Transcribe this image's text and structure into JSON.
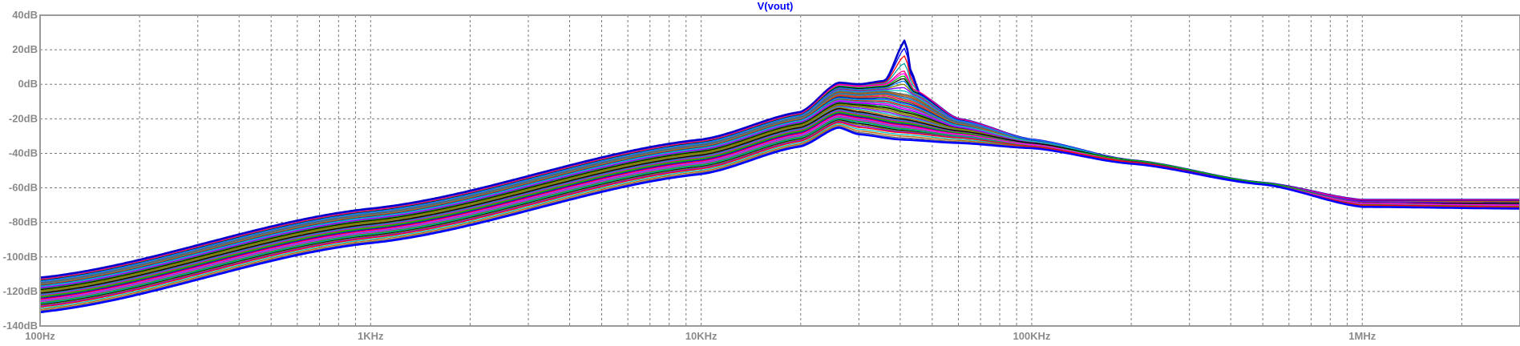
{
  "chart_data": {
    "type": "line",
    "title": "V(vout)",
    "title_color": "#0000ff",
    "x_scale": "log",
    "xlim_hz": [
      100,
      3000000
    ],
    "ylim_db": [
      -140,
      40
    ],
    "x_ticks": [
      {
        "value": 100,
        "label": "100Hz"
      },
      {
        "value": 1000,
        "label": "1KHz"
      },
      {
        "value": 10000,
        "label": "10KHz"
      },
      {
        "value": 100000,
        "label": "100KHz"
      },
      {
        "value": 1000000,
        "label": "1MHz"
      }
    ],
    "y_ticks": [
      {
        "value": 40,
        "label": "40dB"
      },
      {
        "value": 20,
        "label": "20dB"
      },
      {
        "value": 0,
        "label": "0dB"
      },
      {
        "value": -20,
        "label": "-20dB"
      },
      {
        "value": -40,
        "label": "-40dB"
      },
      {
        "value": -60,
        "label": "-60dB"
      },
      {
        "value": -80,
        "label": "-80dB"
      },
      {
        "value": -100,
        "label": "-100dB"
      },
      {
        "value": -120,
        "label": "-120dB"
      },
      {
        "value": -140,
        "label": "-140dB"
      }
    ],
    "grid": true,
    "series_colors": [
      "#0000ff",
      "#ff0000",
      "#00a0a0",
      "#ff00ff",
      "#00c000",
      "#000000",
      "#808000",
      "#8000ff",
      "#00c0c0",
      "#c06000",
      "#606060",
      "#0080ff",
      "#ff0080",
      "#408000"
    ],
    "series": [
      {
        "x": [
          100,
          1000,
          10000,
          20000,
          26000,
          30000,
          40000,
          60000,
          100000,
          200000,
          500000,
          1000000,
          3000000
        ],
        "y": [
          -132,
          -92,
          -52,
          -36,
          -25,
          -29,
          -32,
          -34,
          -37,
          -46,
          -58,
          -71,
          -72
        ]
      },
      {
        "x": [
          100,
          1000,
          10000,
          20000,
          26000,
          30000,
          40000,
          60000,
          100000,
          200000,
          500000,
          1000000,
          3000000
        ],
        "y": [
          -129,
          -89,
          -49,
          -33,
          -22,
          -25,
          -28,
          -31,
          -36,
          -45,
          -58,
          -70,
          -71
        ]
      },
      {
        "x": [
          100,
          1000,
          10000,
          20000,
          26000,
          30000,
          40000,
          60000,
          100000,
          200000,
          500000,
          1000000,
          3000000
        ],
        "y": [
          -127,
          -87,
          -47,
          -31,
          -20,
          -22,
          -26,
          -30,
          -36,
          -45,
          -58,
          -70,
          -71
        ]
      },
      {
        "x": [
          100,
          1000,
          10000,
          20000,
          26000,
          30000,
          40000,
          60000,
          100000,
          200000,
          500000,
          1000000,
          3000000
        ],
        "y": [
          -125,
          -85,
          -45,
          -29,
          -18,
          -20,
          -24,
          -29,
          -35,
          -45,
          -58,
          -69,
          -70
        ]
      },
      {
        "x": [
          100,
          1000,
          10000,
          20000,
          26000,
          30000,
          40000,
          60000,
          100000,
          200000,
          500000,
          1000000,
          3000000
        ],
        "y": [
          -123,
          -83,
          -43,
          -27,
          -16,
          -18,
          -22,
          -28,
          -35,
          -44,
          -57,
          -69,
          -70
        ]
      },
      {
        "x": [
          100,
          1000,
          10000,
          20000,
          26000,
          30000,
          40000,
          60000,
          100000,
          200000,
          500000,
          1000000,
          3000000
        ],
        "y": [
          -121,
          -81,
          -41,
          -25,
          -14,
          -16,
          -20,
          -27,
          -34,
          -44,
          -57,
          -69,
          -69
        ]
      },
      {
        "x": [
          100,
          1000,
          10000,
          20000,
          26000,
          30000,
          36000,
          42000,
          60000,
          100000,
          200000,
          500000,
          1000000,
          3000000
        ],
        "y": [
          -120,
          -80,
          -40,
          -24,
          -12,
          -13,
          -15,
          -18,
          -26,
          -34,
          -44,
          -57,
          -69,
          -69
        ]
      },
      {
        "x": [
          100,
          1000,
          10000,
          20000,
          26000,
          30000,
          36000,
          42000,
          60000,
          100000,
          200000,
          500000,
          1000000,
          3000000
        ],
        "y": [
          -118,
          -78,
          -38,
          -22,
          -10,
          -11,
          -12,
          -15,
          -25,
          -34,
          -44,
          -57,
          -68,
          -69
        ]
      },
      {
        "x": [
          100,
          1000,
          10000,
          20000,
          26000,
          30000,
          36000,
          42000,
          60000,
          100000,
          200000,
          500000,
          1000000,
          3000000
        ],
        "y": [
          -117,
          -77,
          -37,
          -21,
          -8,
          -9,
          -9,
          -12,
          -24,
          -33,
          -44,
          -57,
          -68,
          -69
        ]
      },
      {
        "x": [
          100,
          1000,
          10000,
          20000,
          26000,
          30000,
          36000,
          42000,
          60000,
          100000,
          200000,
          500000,
          1000000,
          3000000
        ],
        "y": [
          -116,
          -76,
          -36,
          -20,
          -6,
          -7,
          -6,
          -9,
          -23,
          -33,
          -44,
          -57,
          -68,
          -68
        ]
      },
      {
        "x": [
          100,
          1000,
          10000,
          20000,
          26000,
          30000,
          36000,
          42000,
          60000,
          100000,
          200000,
          500000,
          1000000,
          3000000
        ],
        "y": [
          -115,
          -75,
          -35,
          -19,
          -4,
          -5,
          -4,
          -6,
          -22,
          -33,
          -44,
          -57,
          -68,
          -68
        ]
      },
      {
        "x": [
          100,
          1000,
          10000,
          20000,
          26000,
          30000,
          36000,
          41000,
          44000,
          60000,
          100000,
          200000,
          500000,
          1000000,
          3000000
        ],
        "y": [
          -114,
          -74,
          -34,
          -18,
          -2,
          -3,
          -2,
          2,
          -5,
          -21,
          -32,
          -44,
          -57,
          -68,
          -68
        ]
      },
      {
        "x": [
          100,
          1000,
          10000,
          20000,
          26000,
          30000,
          36000,
          41000,
          44000,
          60000,
          100000,
          200000,
          500000,
          1000000,
          3000000
        ],
        "y": [
          -113,
          -73,
          -33,
          -17,
          0,
          -1,
          0,
          8,
          -3,
          -20,
          -32,
          -44,
          -57,
          -67,
          -67
        ]
      },
      {
        "x": [
          100,
          1000,
          10000,
          20000,
          26000,
          30000,
          36000,
          41500,
          43000,
          46000,
          60000,
          100000,
          200000,
          500000,
          1000000,
          3000000
        ],
        "y": [
          -112,
          -72,
          -32,
          -16,
          1,
          0,
          2,
          26,
          8,
          -6,
          -20,
          -32,
          -44,
          -57,
          -67,
          -67
        ]
      }
    ]
  }
}
